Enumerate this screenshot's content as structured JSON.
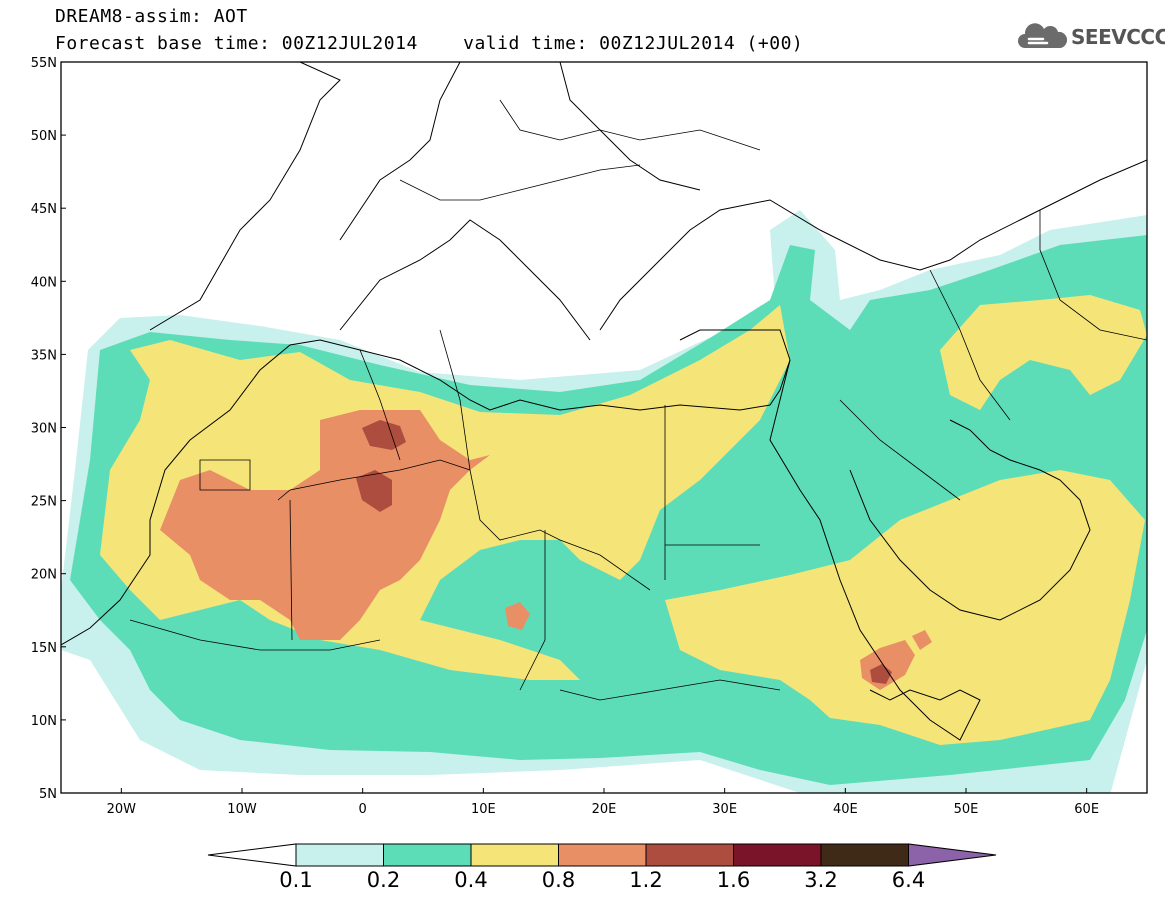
{
  "title": {
    "line1": "DREAM8-assim: AOT",
    "line2": "Forecast base time: 00Z12JUL2014    valid time: 00Z12JUL2014 (+00)"
  },
  "logo": {
    "text": "SEEVCCC",
    "icon": "cloud-icon"
  },
  "map": {
    "lon_range": [
      -25,
      65
    ],
    "lat_range": [
      5,
      55
    ],
    "y_ticks": [
      {
        "value": 55,
        "label": "55N"
      },
      {
        "value": 50,
        "label": "50N"
      },
      {
        "value": 45,
        "label": "45N"
      },
      {
        "value": 40,
        "label": "40N"
      },
      {
        "value": 35,
        "label": "35N"
      },
      {
        "value": 30,
        "label": "30N"
      },
      {
        "value": 25,
        "label": "25N"
      },
      {
        "value": 20,
        "label": "20N"
      },
      {
        "value": 15,
        "label": "15N"
      },
      {
        "value": 10,
        "label": "10N"
      },
      {
        "value": 5,
        "label": "5N"
      }
    ],
    "x_ticks": [
      {
        "value": -20,
        "label": "20W"
      },
      {
        "value": -10,
        "label": "10W"
      },
      {
        "value": 0,
        "label": "0"
      },
      {
        "value": 10,
        "label": "10E"
      },
      {
        "value": 20,
        "label": "20E"
      },
      {
        "value": 30,
        "label": "30E"
      },
      {
        "value": 40,
        "label": "40E"
      },
      {
        "value": 50,
        "label": "50E"
      },
      {
        "value": 60,
        "label": "60E"
      }
    ]
  },
  "colorbar": {
    "labels": [
      "0.1",
      "0.2",
      "0.4",
      "0.8",
      "1.2",
      "1.6",
      "3.2",
      "6.4"
    ],
    "colors": {
      "below": "#ffffff",
      "b01_02": "#c8f0ec",
      "b02_04": "#5cddb8",
      "b04_08": "#f5e579",
      "b08_12": "#e98f66",
      "b12_16": "#ad4d3f",
      "b16_32": "#7a1428",
      "b32_64": "#3e2a17",
      "above": "#8c63a8"
    }
  }
}
